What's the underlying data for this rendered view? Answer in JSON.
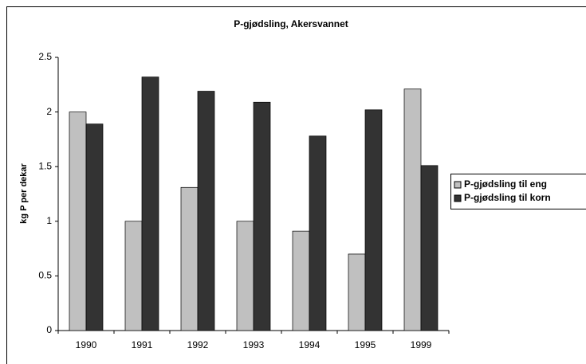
{
  "chart_data": {
    "type": "bar",
    "title": "P-gjødsling, Akersvannet",
    "y_label": "kg P per dekar",
    "categories": [
      "1990",
      "1991",
      "1992",
      "1993",
      "1994",
      "1995",
      "1999"
    ],
    "series": [
      {
        "name": "P-gjødsling til eng",
        "color": "#c0c0c0",
        "values": [
          2.0,
          1.0,
          1.31,
          1.0,
          0.91,
          0.7,
          2.21
        ]
      },
      {
        "name": "P-gjødsling til korn",
        "color": "#333333",
        "values": [
          1.89,
          2.32,
          2.19,
          2.09,
          1.78,
          2.02,
          1.51
        ]
      }
    ],
    "ylim": [
      0,
      2.5
    ],
    "yticks": [
      0,
      0.5,
      1,
      {
        "value": 1.5,
        "label": "1.5"
      },
      2,
      2.5
    ],
    "legend": "right"
  }
}
